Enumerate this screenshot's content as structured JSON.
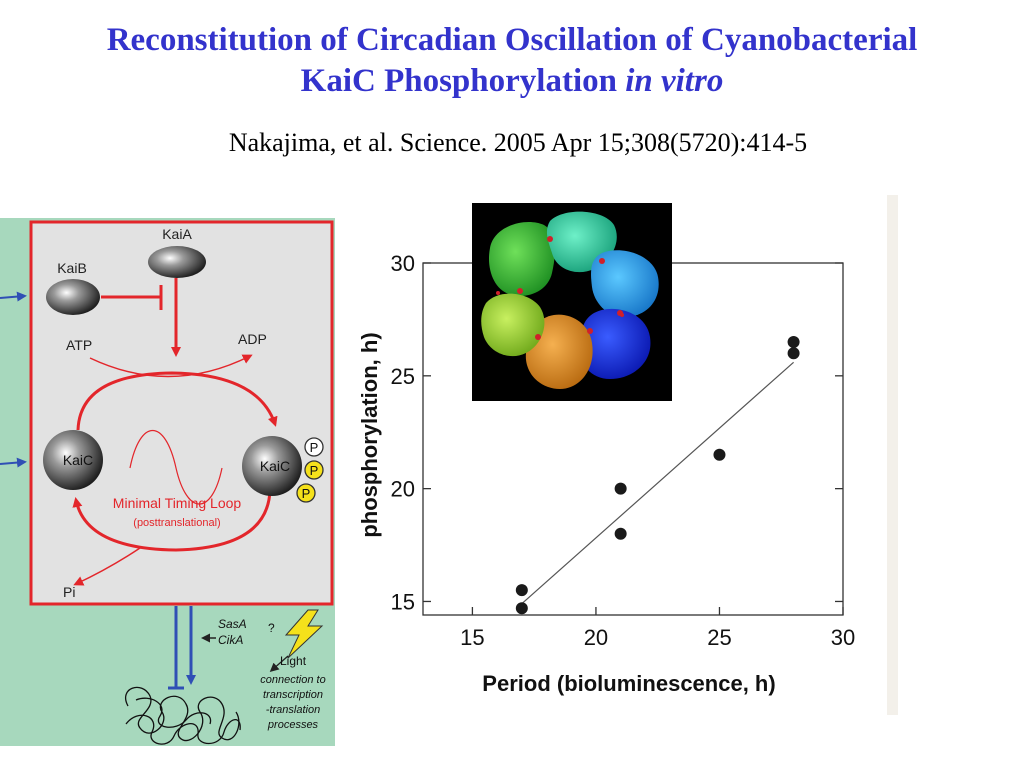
{
  "slide": {
    "title_line1": "Reconstitution of Circadian Oscillation of Cyanobacterial",
    "title_line2": "KaiC Phosphorylation ",
    "title_line2_italic": "in vitro",
    "citation": "Nakajima, et al.  Science. 2005 Apr 15;308(5720):414-5"
  },
  "diagram": {
    "kaia": "KaiA",
    "kaib": "KaiB",
    "atp": "ATP",
    "adp": "ADP",
    "kaic_left": "KaiC",
    "kaic_right": "KaiC",
    "p": "P",
    "loop_label": "Minimal Timing Loop",
    "loop_sublabel": "(posttranslational)",
    "pi": "Pi",
    "q": "?",
    "sasa": "SasA",
    "cika": "CikA",
    "light": "Light",
    "conn": [
      "connection to",
      "transcription",
      "-translation",
      "processes"
    ],
    "colors": {
      "red": "#e3262b",
      "blue": "#2f4fb5",
      "green_bg": "#a7d8bd",
      "box_bg": "#e2e2e2",
      "yellow": "#f5e11b"
    }
  },
  "chart_data": {
    "type": "scatter",
    "xlabel": "Period (bioluminescence, h)",
    "ylabel": "phosphorylation, h)",
    "xlim": [
      13,
      30
    ],
    "ylim": [
      14.4,
      30
    ],
    "xticks": [
      15,
      20,
      25,
      30
    ],
    "yticks": [
      15,
      20,
      25,
      30
    ],
    "points": [
      {
        "x": 17,
        "y": 15.5
      },
      {
        "x": 17,
        "y": 14.7
      },
      {
        "x": 21,
        "y": 20.0
      },
      {
        "x": 21,
        "y": 18.0
      },
      {
        "x": 25,
        "y": 21.5
      },
      {
        "x": 28,
        "y": 26.5
      },
      {
        "x": 28,
        "y": 26.0
      }
    ],
    "fit_line": [
      {
        "x": 17,
        "y": 14.9
      },
      {
        "x": 28,
        "y": 25.6
      }
    ],
    "grid": false
  }
}
